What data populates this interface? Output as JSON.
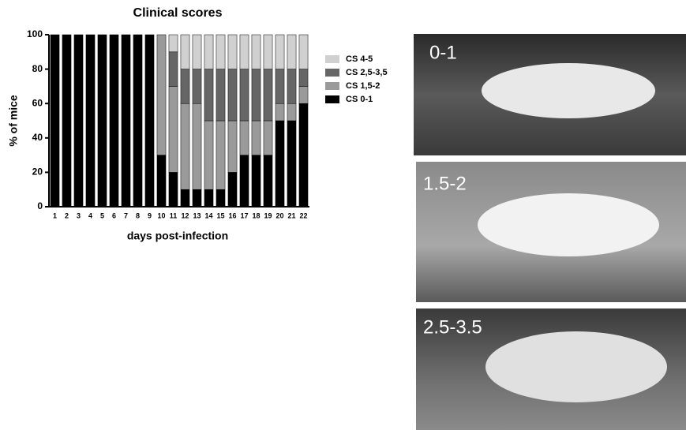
{
  "chart_data": {
    "type": "stacked-bar",
    "title": "Clinical scores",
    "x_label": "days post-infection",
    "y_label": "% of mice",
    "categories": [
      "1",
      "2",
      "3",
      "4",
      "5",
      "6",
      "7",
      "8",
      "9",
      "10",
      "11",
      "12",
      "13",
      "14",
      "15",
      "16",
      "17",
      "18",
      "19",
      "20",
      "21",
      "22"
    ],
    "series": [
      {
        "name": "CS 0-1",
        "color": "#000000",
        "values": [
          100,
          100,
          100,
          100,
          100,
          100,
          100,
          100,
          100,
          30,
          20,
          10,
          10,
          10,
          10,
          20,
          30,
          30,
          30,
          50,
          50,
          60
        ]
      },
      {
        "name": "CS 1,5-2",
        "color": "#9a9a9a",
        "values": [
          0,
          0,
          0,
          0,
          0,
          0,
          0,
          0,
          0,
          70,
          50,
          50,
          50,
          40,
          40,
          30,
          20,
          20,
          20,
          10,
          10,
          10
        ]
      },
      {
        "name": "CS 2,5-3,5",
        "color": "#666666",
        "values": [
          0,
          0,
          0,
          0,
          0,
          0,
          0,
          0,
          0,
          0,
          20,
          20,
          20,
          30,
          30,
          30,
          30,
          30,
          30,
          20,
          20,
          10
        ]
      },
      {
        "name": "CS 4-5",
        "color": "#d0d0d0",
        "values": [
          0,
          0,
          0,
          0,
          0,
          0,
          0,
          0,
          0,
          0,
          10,
          20,
          20,
          20,
          20,
          20,
          20,
          20,
          20,
          20,
          20,
          20
        ]
      }
    ],
    "ylim": [
      0,
      100
    ],
    "yticks": [
      0,
      20,
      40,
      60,
      80,
      100
    ],
    "legend": "right"
  },
  "photo_labels": [
    "0-1",
    "1.5-2",
    "2.5-3.5"
  ]
}
